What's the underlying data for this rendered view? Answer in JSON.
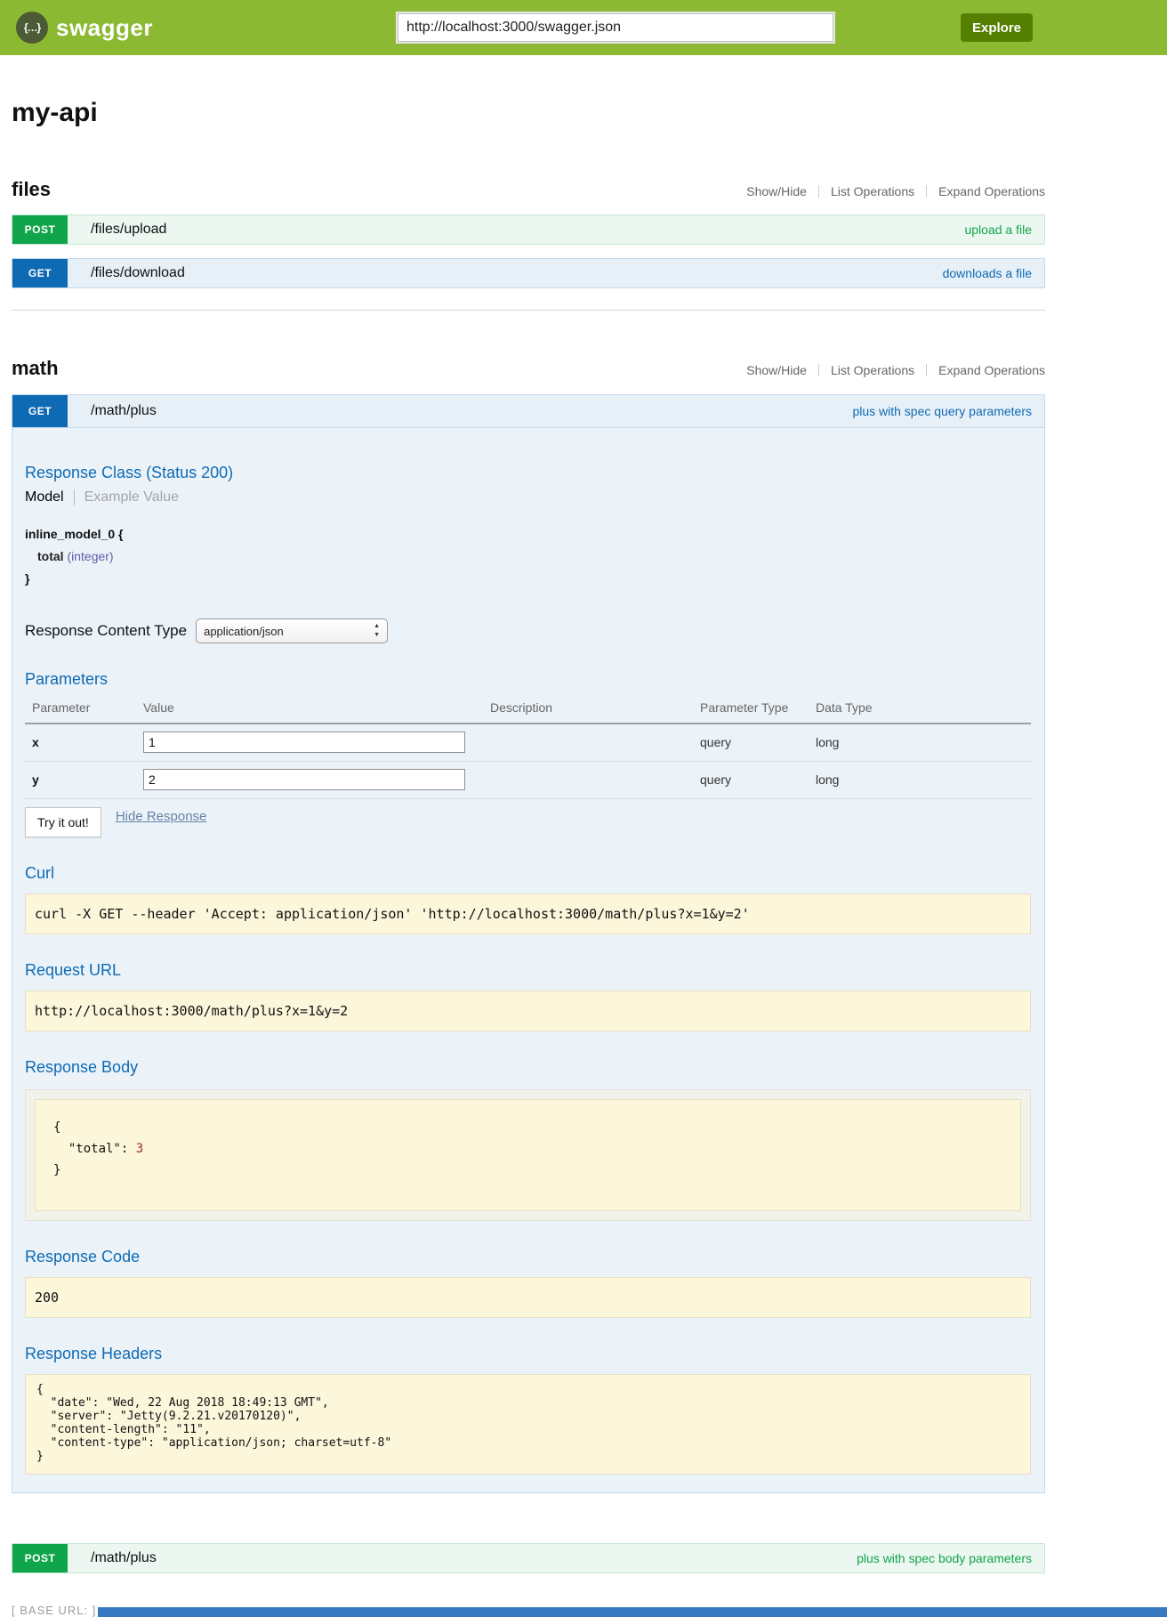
{
  "header": {
    "logo_glyph": "{…}",
    "brand": "swagger",
    "url_value": "http://localhost:3000/swagger.json",
    "explore_label": "Explore"
  },
  "page": {
    "title": "my-api"
  },
  "section_links": {
    "show_hide": "Show/Hide",
    "list_operations": "List Operations",
    "expand_operations": "Expand Operations"
  },
  "files_section": {
    "title": "files",
    "operations": [
      {
        "method": "POST",
        "path": "/files/upload",
        "summary": "upload a file"
      },
      {
        "method": "GET",
        "path": "/files/download",
        "summary": "downloads a file"
      }
    ]
  },
  "math_section": {
    "title": "math",
    "get_op": {
      "method": "GET",
      "path": "/math/plus",
      "summary": "plus with spec query parameters"
    },
    "post_op": {
      "method": "POST",
      "path": "/math/plus",
      "summary": "plus with spec body parameters"
    }
  },
  "operation_detail": {
    "response_class_title": "Response Class (Status 200)",
    "tabs": {
      "model": "Model",
      "example": "Example Value"
    },
    "model": {
      "name": "inline_model_0 {",
      "property_name": "total",
      "property_type": "(integer)",
      "close": "}"
    },
    "response_content_type_label": "Response Content Type",
    "response_content_type_value": "application/json",
    "parameters_title": "Parameters",
    "table": {
      "headers": [
        "Parameter",
        "Value",
        "Description",
        "Parameter Type",
        "Data Type"
      ],
      "rows": [
        {
          "name": "x",
          "value": "1",
          "description": "",
          "param_type": "query",
          "data_type": "long"
        },
        {
          "name": "y",
          "value": "2",
          "description": "",
          "param_type": "query",
          "data_type": "long"
        }
      ]
    },
    "try_it_out_label": "Try it out!",
    "hide_response_label": "Hide Response",
    "curl_title": "Curl",
    "curl_command": "curl -X GET --header 'Accept: application/json' 'http://localhost:3000/math/plus?x=1&y=2'",
    "request_url_title": "Request URL",
    "request_url": "http://localhost:3000/math/plus?x=1&y=2",
    "response_body_title": "Response Body",
    "response_body": {
      "open": "{\n  ",
      "key": "\"total\"",
      "sep": ": ",
      "value": "3",
      "close": "\n}"
    },
    "response_code_title": "Response Code",
    "response_code": "200",
    "response_headers_title": "Response Headers",
    "response_headers_json": "{\n  \"date\": \"Wed, 22 Aug 2018 18:49:13 GMT\",\n  \"server\": \"Jetty(9.2.21.v20170120)\",\n  \"content-length\": \"11\",\n  \"content-type\": \"application/json; charset=utf-8\"\n}"
  },
  "footer": {
    "base_url_label": "[ BASE URL: ]"
  },
  "colors": {
    "topbar_green": "#8cb932",
    "explore_green": "#547f00",
    "get_blue": "#0f6ab4",
    "post_green": "#10a54a",
    "panel_blue_bg": "#ebf3f9",
    "code_yellow_bg": "#fcf6db",
    "number_red": "#9d2b22",
    "bottom_strip_blue": "#3679c0"
  }
}
